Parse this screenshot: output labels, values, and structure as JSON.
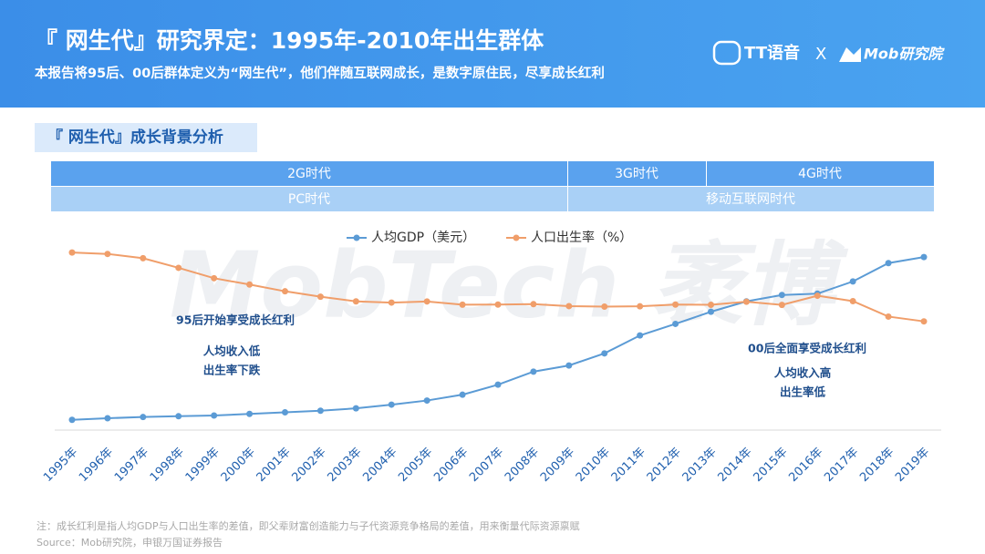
{
  "header": {
    "title": "『 网生代』研究界定：1995年-2010年出生群体",
    "subtitle": "本报告将95后、00后群体定义为“网生代”，他们伴随互联网成长，是数字原住民，尽享成长红利",
    "logo_left": "TT语音",
    "logo_sep": "X",
    "logo_right": "Mob研究院"
  },
  "section_title": "『 网生代』成长背景分析",
  "eras": {
    "network": [
      "2G时代",
      "3G时代",
      "4G时代"
    ],
    "device": [
      "PC时代",
      "移动互联网时代"
    ]
  },
  "chart_data": {
    "type": "line",
    "watermark": "MobTech 袤博",
    "categories": [
      "1995年",
      "1996年",
      "1997年",
      "1998年",
      "1999年",
      "2000年",
      "2001年",
      "2002年",
      "2003年",
      "2004年",
      "2005年",
      "2006年",
      "2007年",
      "2008年",
      "2009年",
      "2010年",
      "2011年",
      "2012年",
      "2013年",
      "2014年",
      "2015年",
      "2016年",
      "2017年",
      "2018年",
      "2019年"
    ],
    "series": [
      {
        "name": "人均GDP（美元）",
        "color": "#5b9bd5",
        "axis": "y",
        "values": [
          610,
          703,
          774,
          821,
          865,
          959,
          1053,
          1149,
          1289,
          1509,
          1753,
          2099,
          2694,
          3468,
          3832,
          4550,
          5614,
          6300,
          7020,
          7636,
          8016,
          8094,
          8817,
          9905,
          10262
        ]
      },
      {
        "name": "人口出生率（%）",
        "color": "#f09e6a",
        "axis": "y2",
        "values": [
          17.12,
          16.98,
          16.57,
          15.64,
          14.64,
          14.03,
          13.38,
          12.86,
          12.41,
          12.29,
          12.4,
          12.09,
          12.1,
          12.14,
          11.95,
          11.9,
          11.93,
          12.1,
          12.08,
          12.37,
          12.07,
          12.95,
          12.43,
          10.94,
          10.48
        ]
      }
    ],
    "ylim": [
      0,
      12000
    ],
    "y2lim": [
      0,
      19.5
    ],
    "grid": false,
    "legend": "top",
    "annotations": [
      "95后开始享受成长红利",
      "人均收入低",
      "出生率下跌",
      "00后全面享受成长红利",
      "人均收入高",
      "出生率低"
    ]
  },
  "footnote": "注：成长红利是指人均GDP与人口出生率的差值，即父辈财富创造能力与子代资源竞争格局的差值，用来衡量代际资源禀赋",
  "source": "Source：Mob研究院，申银万国证券报告"
}
